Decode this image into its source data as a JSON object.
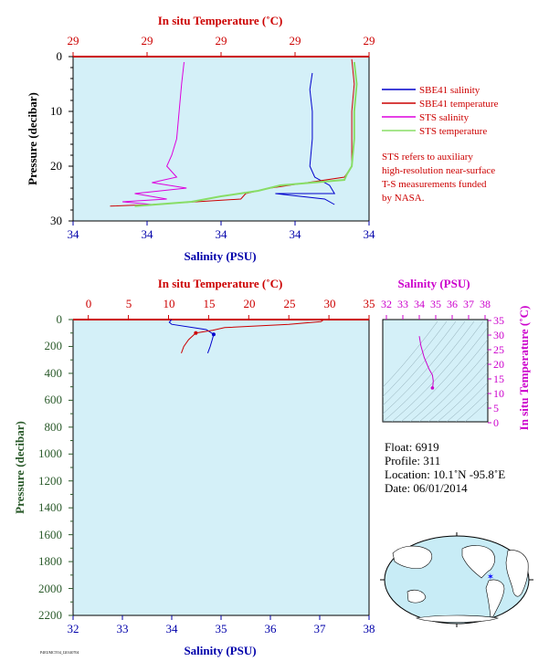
{
  "colors": {
    "panel_bg": "#d4f0f8",
    "salinity_shallow": "#0000cc",
    "temperature_shallow": "#cc0000",
    "sts_salinity": "#dd00dd",
    "sts_temperature": "#88dd66",
    "temp_axis": "#cc0000",
    "sal_axis": "#0000aa",
    "ts_axis": "#cc00cc",
    "pressure_axis": "#2a5a2a"
  },
  "top_panel": {
    "top_axis_title": "In situ Temperature (˚C)",
    "bottom_axis_title": "Salinity (PSU)",
    "left_axis_title": "Pressure (decibar)",
    "top_ticks": [
      "29",
      "29",
      "29",
      "29",
      "29"
    ],
    "bottom_ticks": [
      "34",
      "34",
      "34",
      "34",
      "34"
    ],
    "left_ticks": [
      "0",
      "10",
      "20",
      "30"
    ],
    "legend": [
      {
        "label": "SBE41 salinity",
        "color": "#0000cc"
      },
      {
        "label": "SBE41 temperature",
        "color": "#cc0000"
      },
      {
        "label": "STS salinity",
        "color": "#dd00dd"
      },
      {
        "label": "STS temperature",
        "color": "#88dd66"
      }
    ],
    "note": [
      "STS refers to auxiliary",
      "high-resolution near-surface",
      "T-S measurements funded",
      "by NASA."
    ]
  },
  "bottom_panel": {
    "top_axis_title": "In situ Temperature (˚C)",
    "bottom_axis_title": "Salinity (PSU)",
    "left_axis_title": "Pressure (decibar)",
    "top_ticks": [
      "0",
      "5",
      "10",
      "15",
      "20",
      "25",
      "30",
      "35"
    ],
    "bottom_ticks": [
      "32",
      "33",
      "34",
      "35",
      "36",
      "37",
      "38"
    ],
    "left_ticks": [
      "0",
      "200",
      "400",
      "600",
      "800",
      "1000",
      "1200",
      "1400",
      "1600",
      "1800",
      "2000",
      "2200"
    ]
  },
  "ts_panel": {
    "top_axis_title": "Salinity (PSU)",
    "right_axis_title": "In situ Temperature (˚C)",
    "top_ticks": [
      "32",
      "33",
      "34",
      "35",
      "36",
      "37",
      "38"
    ],
    "right_ticks": [
      "35",
      "30",
      "25",
      "20",
      "15",
      "10",
      "5",
      "0"
    ]
  },
  "info": {
    "float": "Float:  6919",
    "profile": "Profile:  311",
    "location": "Location:  10.1˚N  -95.8˚E",
    "date": "Date:  06/01/2014"
  },
  "footer_code": "P4EUMCTO4_I20140704",
  "chart_data": [
    {
      "type": "line",
      "panel": "near-surface",
      "xlabel": "Salinity (PSU)",
      "x2label": "In situ Temperature (˚C)",
      "ylabel": "Pressure (decibar)",
      "ylim": [
        30,
        0
      ],
      "series": [
        {
          "name": "SBE41 salinity",
          "points": [
            [
              34.77,
              3
            ],
            [
              34.76,
              6
            ],
            [
              34.77,
              10
            ],
            [
              34.77,
              15
            ],
            [
              34.76,
              20
            ],
            [
              34.78,
              22
            ],
            [
              34.84,
              23.5
            ],
            [
              34.86,
              25
            ],
            [
              34.62,
              25
            ],
            [
              34.82,
              26
            ],
            [
              34.86,
              27
            ]
          ]
        },
        {
          "name": "SBE41 temperature",
          "points": [
            [
              34.93,
              0.5
            ],
            [
              34.94,
              5
            ],
            [
              34.93,
              10
            ],
            [
              34.93,
              15
            ],
            [
              34.93,
              20
            ],
            [
              34.9,
              22
            ],
            [
              34.6,
              24
            ],
            [
              34.5,
              25
            ],
            [
              34.48,
              26
            ],
            [
              34.12,
              27
            ],
            [
              33.95,
              27.3
            ]
          ]
        },
        {
          "name": "STS salinity",
          "points": [
            [
              34.25,
              1
            ],
            [
              34.24,
              5
            ],
            [
              34.23,
              10
            ],
            [
              34.22,
              15
            ],
            [
              34.2,
              18
            ],
            [
              34.18,
              20
            ],
            [
              34.22,
              22
            ],
            [
              34.12,
              23
            ],
            [
              34.26,
              24
            ],
            [
              34.05,
              25
            ],
            [
              34.18,
              26
            ],
            [
              34.0,
              26.5
            ],
            [
              34.12,
              27
            ]
          ]
        },
        {
          "name": "STS temperature",
          "points": [
            [
              34.94,
              1
            ],
            [
              34.95,
              5
            ],
            [
              34.94,
              10
            ],
            [
              34.94,
              15
            ],
            [
              34.93,
              20
            ],
            [
              34.91,
              21.5
            ],
            [
              34.9,
              22.5
            ],
            [
              34.64,
              23.5
            ],
            [
              34.55,
              24.5
            ],
            [
              34.4,
              25.5
            ],
            [
              34.28,
              26.5
            ],
            [
              34.05,
              27.3
            ]
          ]
        }
      ]
    },
    {
      "type": "line",
      "panel": "full-depth",
      "xlabel": "Salinity (PSU)",
      "x2label": "In situ Temperature (˚C)",
      "ylabel": "Pressure (decibar)",
      "xlim": [
        32,
        38
      ],
      "x2lim": [
        0,
        35
      ],
      "ylim": [
        2200,
        0
      ],
      "series": [
        {
          "name": "Salinity",
          "points": [
            [
              34.0,
              0
            ],
            [
              33.95,
              20
            ],
            [
              34.0,
              35
            ],
            [
              34.7,
              75
            ],
            [
              34.85,
              110
            ],
            [
              34.82,
              150
            ],
            [
              34.78,
              200
            ],
            [
              34.73,
              250
            ]
          ]
        },
        {
          "name": "Temperature",
          "points": [
            [
              29.4,
              0
            ],
            [
              29.0,
              15
            ],
            [
              25,
              35
            ],
            [
              17,
              60
            ],
            [
              15.5,
              80
            ],
            [
              13.4,
              100
            ],
            [
              12.5,
              150
            ],
            [
              11.9,
              200
            ],
            [
              11.6,
              250
            ]
          ]
        }
      ]
    },
    {
      "type": "line",
      "panel": "T-S diagram",
      "xlabel": "Salinity (PSU)",
      "ylabel": "In situ Temperature (˚C)",
      "xlim": [
        32,
        38
      ],
      "ylim": [
        0,
        35
      ],
      "series": [
        {
          "name": "T-S",
          "points": [
            [
              34.0,
              29.3
            ],
            [
              34.1,
              26
            ],
            [
              34.3,
              22
            ],
            [
              34.6,
              18
            ],
            [
              34.8,
              16
            ],
            [
              34.85,
              14
            ],
            [
              34.83,
              12.5
            ],
            [
              34.8,
              11.6
            ]
          ]
        }
      ]
    }
  ]
}
